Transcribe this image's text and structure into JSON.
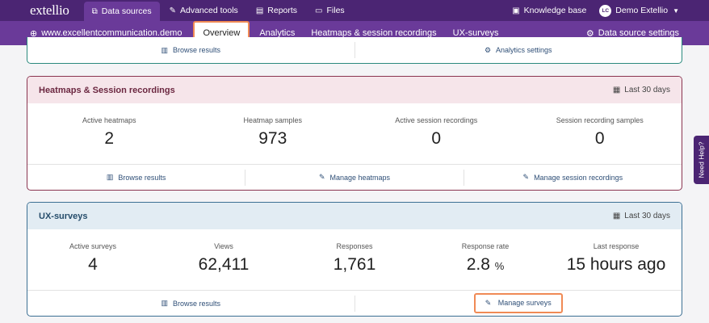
{
  "topnav": {
    "logo": "extellio",
    "tabs": [
      {
        "label": "Data sources",
        "icon": "sitemap-icon"
      },
      {
        "label": "Advanced tools",
        "icon": "wrench-icon"
      },
      {
        "label": "Reports",
        "icon": "report-icon"
      },
      {
        "label": "Files",
        "icon": "folder-icon"
      }
    ],
    "knowledge_base": "Knowledge base",
    "user_initials": "LC",
    "user_name": "Demo Extellio"
  },
  "subnav": {
    "site": "www.excellentcommunication.demo",
    "tabs": [
      {
        "label": "Overview"
      },
      {
        "label": "Analytics"
      },
      {
        "label": "Heatmaps & session recordings"
      },
      {
        "label": "UX-surveys"
      }
    ],
    "settings": "Data source settings"
  },
  "analytics_card": {
    "links": [
      "Browse results",
      "Analytics settings"
    ]
  },
  "heatmaps_card": {
    "title": "Heatmaps & Session recordings",
    "period": "Last 30 days",
    "stats": [
      {
        "label": "Active heatmaps",
        "value": "2"
      },
      {
        "label": "Heatmap samples",
        "value": "973"
      },
      {
        "label": "Active session recordings",
        "value": "0"
      },
      {
        "label": "Session recording samples",
        "value": "0"
      }
    ],
    "links": [
      "Browse results",
      "Manage heatmaps",
      "Manage session recordings"
    ]
  },
  "ux_card": {
    "title": "UX-surveys",
    "period": "Last 30 days",
    "stats": [
      {
        "label": "Active surveys",
        "value": "4"
      },
      {
        "label": "Views",
        "value": "62,411"
      },
      {
        "label": "Responses",
        "value": "1,761"
      },
      {
        "label": "Response rate",
        "value": "2.8",
        "unit": "%"
      },
      {
        "label": "Last response",
        "value": "15 hours ago"
      }
    ],
    "links": [
      "Browse results",
      "Manage surveys"
    ]
  },
  "need_help": "Need Help?"
}
